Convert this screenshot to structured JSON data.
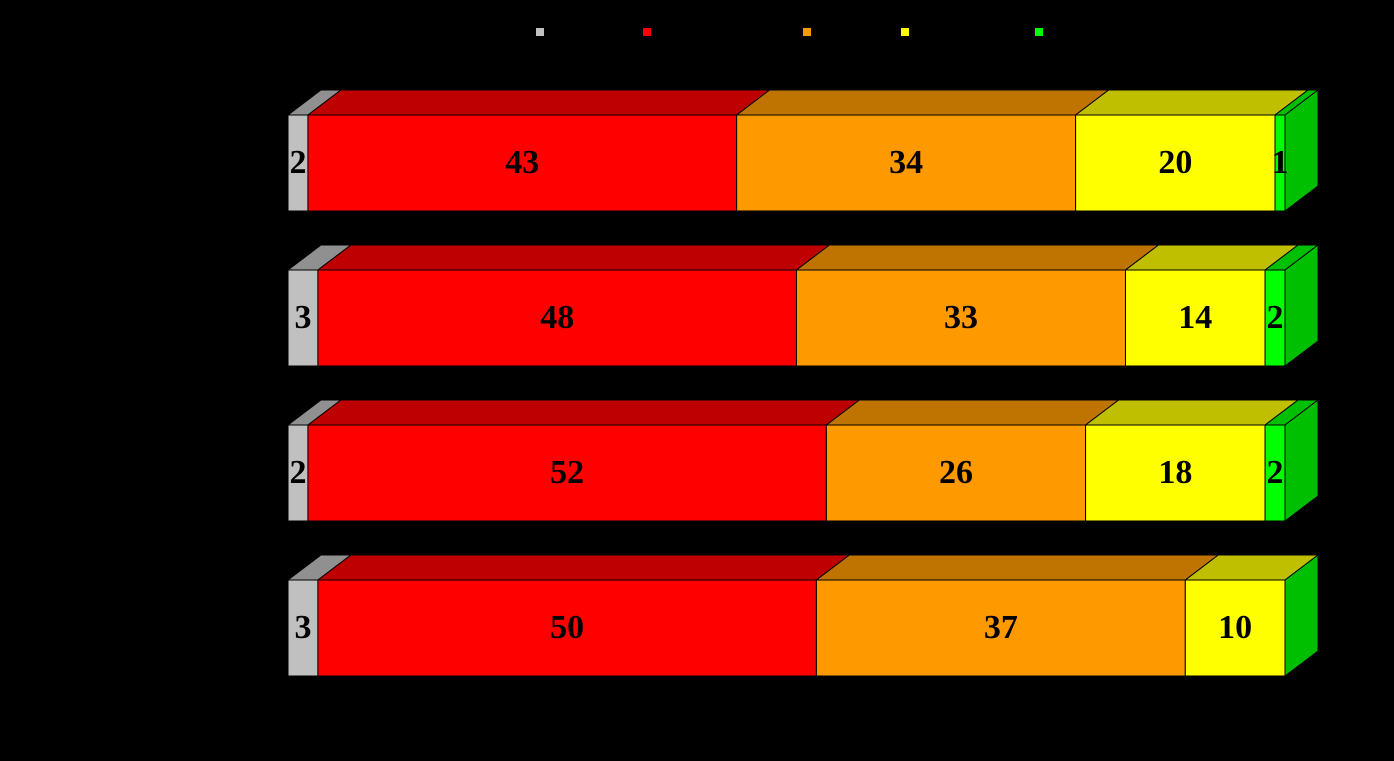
{
  "chart_data": {
    "type": "bar3d_stacked_horizontal",
    "xlim": [
      0,
      100
    ],
    "series": [
      {
        "color": "#c0c0c0",
        "values": [
          2,
          3,
          2,
          3
        ]
      },
      {
        "color": "#ff0000",
        "values": [
          43,
          48,
          52,
          50
        ]
      },
      {
        "color": "#ff9900",
        "values": [
          34,
          33,
          26,
          37
        ]
      },
      {
        "color": "#ffff00",
        "values": [
          20,
          14,
          18,
          10
        ]
      },
      {
        "color": "#00ff00",
        "values": [
          1,
          2,
          2,
          0
        ]
      }
    ]
  }
}
